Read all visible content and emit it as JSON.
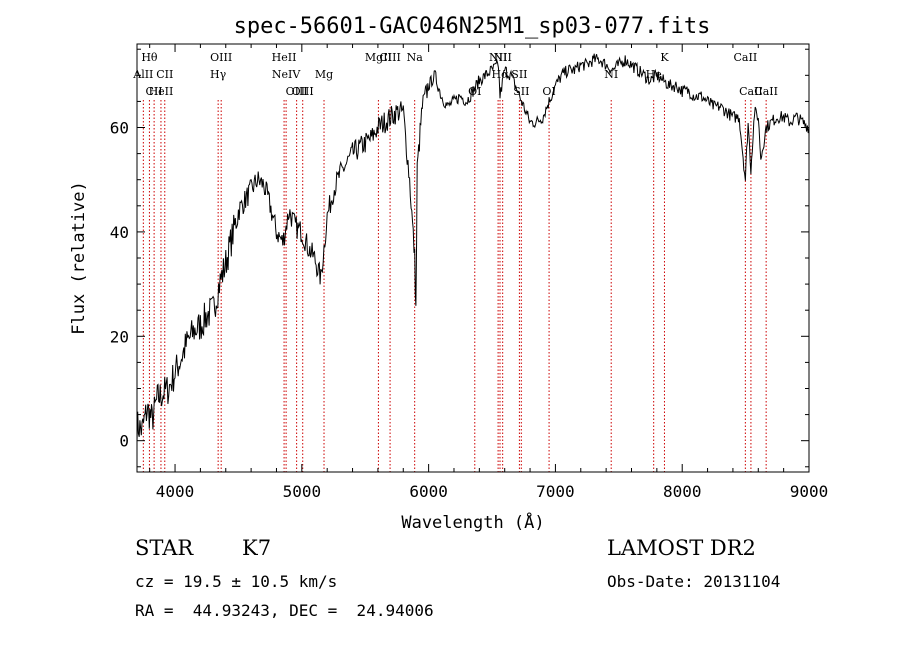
{
  "chart_data": {
    "type": "line",
    "title": "spec-56601-GAC046N25M1_sp03-077.fits",
    "xlabel": "Wavelength (Å)",
    "ylabel": "Flux (relative)",
    "xlim": [
      3700,
      9000
    ],
    "ylim": [
      -6,
      76
    ],
    "x_ticks": [
      4000,
      5000,
      6000,
      7000,
      8000,
      9000
    ],
    "y_ticks": [
      0,
      20,
      40,
      60
    ],
    "grid": false,
    "line_color": "#000000",
    "marker_color": "#cc0000",
    "series": [
      {
        "x": [
          3700,
          3740,
          3780,
          3820,
          3860,
          3900,
          3950,
          4000,
          4050,
          4100,
          4150,
          4200,
          4250,
          4300,
          4350,
          4400,
          4450,
          4500,
          4550,
          4600,
          4650,
          4700,
          4750,
          4800,
          4850,
          4900,
          4950,
          5000,
          5050,
          5100,
          5150,
          5200,
          5250,
          5300,
          5350,
          5400,
          5450,
          5500,
          5550,
          5600,
          5650,
          5700,
          5750,
          5800,
          5850,
          5890,
          5900,
          5910,
          5950,
          6000,
          6050,
          6100,
          6150,
          6200,
          6250,
          6300,
          6350,
          6400,
          6450,
          6500,
          6550,
          6563,
          6600,
          6650,
          6700,
          6750,
          6800,
          6850,
          6900,
          6950,
          7000,
          7050,
          7100,
          7150,
          7200,
          7250,
          7300,
          7350,
          7400,
          7450,
          7500,
          7550,
          7600,
          7650,
          7700,
          7750,
          7800,
          7850,
          7900,
          7950,
          8000,
          8050,
          8100,
          8150,
          8200,
          8250,
          8300,
          8350,
          8400,
          8450,
          8498,
          8520,
          8542,
          8570,
          8600,
          8620,
          8662,
          8700,
          8750,
          8800,
          8850,
          8900,
          8950,
          9000
        ],
        "y": [
          3,
          2,
          6,
          4,
          8,
          9,
          10,
          13,
          16,
          19,
          21,
          22,
          24,
          25,
          30,
          34,
          39,
          44,
          46,
          48,
          50,
          49,
          45,
          40,
          38,
          44,
          41,
          40,
          37,
          35,
          31,
          43,
          48,
          51,
          53,
          55,
          56,
          57,
          58,
          60,
          61,
          62,
          63,
          63,
          50,
          35,
          25,
          52,
          64,
          68,
          70,
          66,
          64,
          65,
          66,
          65,
          67,
          69,
          70,
          71,
          72,
          66,
          71,
          70,
          67,
          64,
          61,
          61,
          62,
          65,
          68,
          70,
          71,
          71,
          72,
          72,
          73,
          73,
          72,
          71,
          72,
          73,
          72,
          71,
          70,
          69,
          70,
          69,
          68,
          68,
          67,
          67,
          66,
          66,
          65,
          64,
          64,
          63,
          62,
          62,
          50,
          61,
          52,
          63,
          62,
          54,
          60,
          61,
          62,
          62,
          61,
          62,
          61,
          60
        ]
      }
    ],
    "line_markers": [
      {
        "label": "Hθ",
        "x": 3798,
        "row": 1
      },
      {
        "label": "AlII",
        "x": 3750,
        "row": 2
      },
      {
        "label": "CII",
        "x": 3835,
        "row": 3
      },
      {
        "label": "HeII",
        "x": 3889,
        "row": 3
      },
      {
        "label": "CII",
        "x": 3919,
        "row": 2
      },
      {
        "label": "OIII",
        "x": 4364,
        "row": 1
      },
      {
        "label": "Hγ",
        "x": 4340,
        "row": 2
      },
      {
        "label": "HeII",
        "x": 4860,
        "row": 1
      },
      {
        "label": "NeIV",
        "x": 4876,
        "row": 2
      },
      {
        "label": "OIII",
        "x": 4959,
        "row": 3
      },
      {
        "label": "OIII",
        "x": 5007,
        "row": 3
      },
      {
        "label": "Mg",
        "x": 5175,
        "row": 2
      },
      {
        "label": "MgII",
        "x": 5604,
        "row": 1
      },
      {
        "label": "CIII",
        "x": 5696,
        "row": 1
      },
      {
        "label": "Na",
        "x": 5890,
        "row": 1
      },
      {
        "label": "OI",
        "x": 6364,
        "row": 3
      },
      {
        "label": "NII",
        "x": 6548,
        "row": 1
      },
      {
        "label": "NII",
        "x": 6584,
        "row": 1
      },
      {
        "label": "Hα",
        "x": 6563,
        "row": 2
      },
      {
        "label": "SII",
        "x": 6716,
        "row": 2
      },
      {
        "label": "SII",
        "x": 6731,
        "row": 3
      },
      {
        "label": "OI",
        "x": 6950,
        "row": 3
      },
      {
        "label": "NI",
        "x": 7440,
        "row": 2
      },
      {
        "label": "He",
        "x": 7775,
        "row": 2
      },
      {
        "label": "K",
        "x": 7860,
        "row": 1
      },
      {
        "label": "CaII",
        "x": 8498,
        "row": 1
      },
      {
        "label": "CaII",
        "x": 8542,
        "row": 3
      },
      {
        "label": "CaII",
        "x": 8662,
        "row": 3
      }
    ]
  },
  "info": {
    "object_class": "STAR",
    "subclass": "K7",
    "survey": "LAMOST DR2",
    "velocity": "cz = 19.5 ± 10.5 km/s",
    "obs_date": "Obs-Date: 20131104",
    "coords": "RA =  44.93243, DEC =  24.94006"
  }
}
